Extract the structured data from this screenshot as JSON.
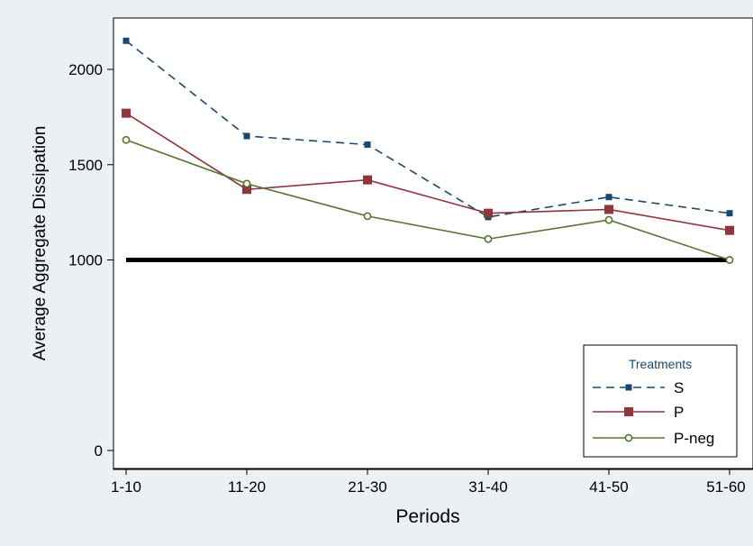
{
  "chart_data": {
    "type": "line",
    "xlabel": "Periods",
    "ylabel": "Average Aggregate Dissipation",
    "categories": [
      "1-10",
      "11-20",
      "21-30",
      "31-40",
      "41-50",
      "51-60"
    ],
    "yticks": [
      0,
      1000,
      1500,
      2000
    ],
    "ylim": [
      -30,
      2180
    ],
    "grid": false,
    "legend": {
      "title": "Treatments",
      "position": "bottom-right"
    },
    "reference_line": {
      "y": 1000,
      "color": "#000000"
    },
    "series": [
      {
        "name": "S",
        "values": [
          2150,
          1650,
          1605,
          1225,
          1330,
          1245
        ],
        "color": "#1a476f",
        "dash": "dashed",
        "marker": "filled-square"
      },
      {
        "name": "P",
        "values": [
          1770,
          1370,
          1420,
          1245,
          1265,
          1155
        ],
        "color": "#90353b",
        "dash": "solid",
        "marker": "large-filled-square"
      },
      {
        "name": "P-neg",
        "values": [
          1630,
          1400,
          1230,
          1110,
          1210,
          1000
        ],
        "color": "#55752f",
        "dash": "solid",
        "marker": "hollow-circle"
      }
    ]
  }
}
